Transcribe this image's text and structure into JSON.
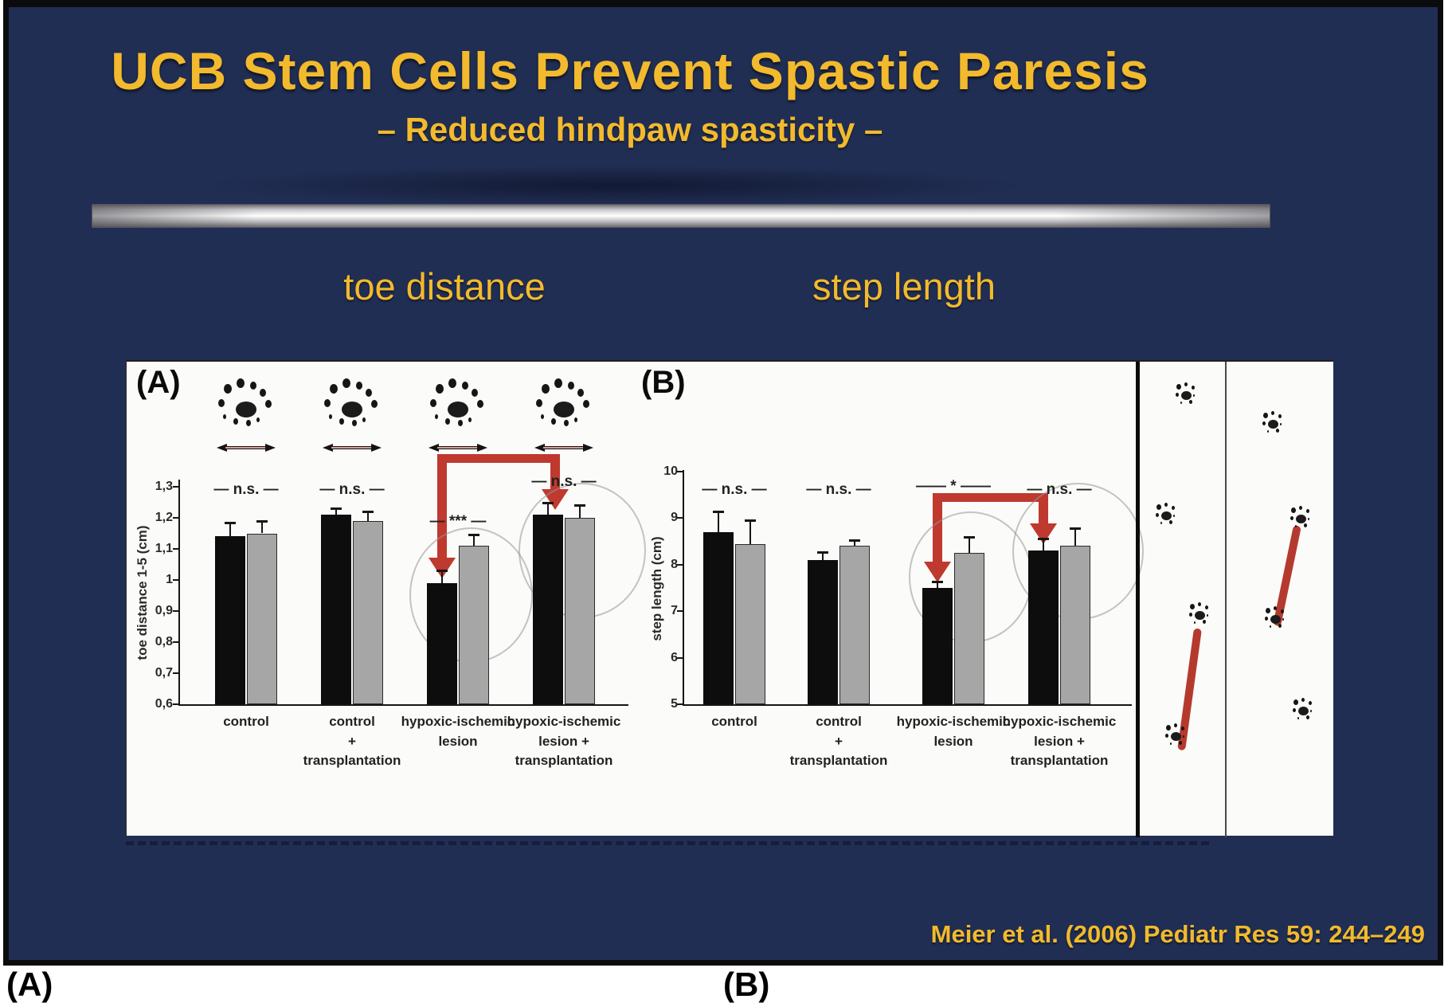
{
  "slide": {
    "title": "UCB Stem Cells Prevent Spastic Paresis",
    "subtitle": "– Reduced hindpaw spasticity –",
    "citation": "Meier et al. (2006) Pediatr Res 59: 244–249"
  },
  "section_labels": {
    "left": "toe distance",
    "right": "step length"
  },
  "figure_labels": {
    "panel_a": "(A)",
    "panel_b": "(B)",
    "bottom_a": "(A)",
    "bottom_b": "(B)"
  },
  "colors": {
    "background": "#212E54",
    "gold": "#F2BA2C",
    "accent_red": "#BF392F",
    "bar_black": "#0D0D0D",
    "bar_gray": "#A6A6A6",
    "panel": "#FBFBF9"
  },
  "chart_data": [
    {
      "id": "toe_distance",
      "type": "bar",
      "title": "toe distance",
      "ylabel": "toe distance 1-5 (cm)",
      "ylim": [
        0.6,
        1.3
      ],
      "grid": false,
      "legend": "none",
      "yticks": [
        {
          "label": "1,3",
          "value": 1.3
        },
        {
          "label": "1,2",
          "value": 1.2
        },
        {
          "label": "1,1",
          "value": 1.1
        },
        {
          "label": "1",
          "value": 1.0
        },
        {
          "label": "0,9",
          "value": 0.9
        },
        {
          "label": "0,8",
          "value": 0.8
        },
        {
          "label": "0,7",
          "value": 0.7
        },
        {
          "label": "0,6",
          "value": 0.6
        }
      ],
      "categories": [
        [
          "control"
        ],
        [
          "control",
          "+",
          "transplantation"
        ],
        [
          "hypoxic-ischemic",
          "lesion"
        ],
        [
          "hypoxic-ischemic",
          "lesion +",
          "transplantation"
        ]
      ],
      "series": [
        {
          "name": "black",
          "color": "#0D0D0D",
          "values": [
            1.14,
            1.21,
            0.99,
            1.21
          ],
          "errors": [
            0.045,
            0.02,
            0.04,
            0.04
          ]
        },
        {
          "name": "gray",
          "color": "#A6A6A6",
          "values": [
            1.15,
            1.19,
            1.11,
            1.2
          ],
          "errors": [
            0.04,
            0.03,
            0.035,
            0.04
          ]
        }
      ],
      "significance": [
        "n.s.",
        "n.s.",
        "***",
        "n.s."
      ]
    },
    {
      "id": "step_length",
      "type": "bar",
      "title": "step length",
      "ylabel": "step length (cm)",
      "ylim": [
        5,
        10
      ],
      "grid": false,
      "legend": "none",
      "yticks": [
        {
          "label": "10",
          "value": 10
        },
        {
          "label": "9",
          "value": 9
        },
        {
          "label": "8",
          "value": 8
        },
        {
          "label": "7",
          "value": 7
        },
        {
          "label": "6",
          "value": 6
        },
        {
          "label": "5",
          "value": 5
        }
      ],
      "categories": [
        [
          "control"
        ],
        [
          "control",
          "+",
          "transplantation"
        ],
        [
          "hypoxic-ischemic",
          "lesion"
        ],
        [
          "hypoxic-ischemic",
          "lesion +",
          "transplantation"
        ]
      ],
      "series": [
        {
          "name": "black",
          "color": "#0D0D0D",
          "values": [
            8.7,
            8.1,
            7.5,
            8.3
          ],
          "errors": [
            0.45,
            0.17,
            0.13,
            0.26
          ]
        },
        {
          "name": "gray",
          "color": "#A6A6A6",
          "values": [
            8.45,
            8.4,
            8.25,
            8.4
          ],
          "errors": [
            0.5,
            0.13,
            0.35,
            0.39
          ]
        }
      ],
      "significance": [
        "n.s.",
        "n.s.",
        "*",
        "n.s."
      ]
    }
  ]
}
